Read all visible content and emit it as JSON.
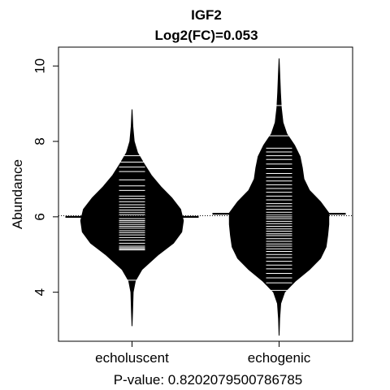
{
  "chart_data": {
    "type": "beanplot",
    "title": "IGF2",
    "subtitle": "Log2(FC)=0.053",
    "ylabel": "Abundance",
    "xlabel": "P-value: 0.8202079500786785",
    "ylim": [
      2.7,
      10.5
    ],
    "yticks": [
      "4",
      "6",
      "8",
      "10"
    ],
    "overall_mean": 6.03,
    "categories": [
      "echoluscent",
      "echogenic"
    ],
    "series": [
      {
        "category": "echoluscent",
        "mean": 6.0,
        "range": [
          3.1,
          8.85
        ],
        "density": [
          [
            3.1,
            0.0
          ],
          [
            3.5,
            0.01
          ],
          [
            4.0,
            0.02
          ],
          [
            4.3,
            0.06
          ],
          [
            4.6,
            0.18
          ],
          [
            5.0,
            0.48
          ],
          [
            5.3,
            0.75
          ],
          [
            5.6,
            0.9
          ],
          [
            5.9,
            0.93
          ],
          [
            6.2,
            0.88
          ],
          [
            6.5,
            0.72
          ],
          [
            6.8,
            0.52
          ],
          [
            7.1,
            0.35
          ],
          [
            7.4,
            0.22
          ],
          [
            7.7,
            0.1
          ],
          [
            8.0,
            0.04
          ],
          [
            8.4,
            0.015
          ],
          [
            8.85,
            0.0
          ]
        ],
        "points": [
          4.32,
          5.12,
          5.15,
          5.18,
          5.22,
          5.3,
          5.38,
          5.45,
          5.52,
          5.58,
          5.63,
          5.7,
          5.75,
          5.8,
          5.86,
          5.9,
          5.95,
          6.02,
          6.06,
          6.12,
          6.18,
          6.25,
          6.32,
          6.4,
          6.48,
          6.55,
          6.7,
          6.82,
          6.98,
          7.2,
          7.32,
          7.45,
          7.62
        ]
      },
      {
        "category": "echogenic",
        "mean": 6.08,
        "range": [
          2.85,
          10.2
        ],
        "density": [
          [
            2.85,
            0.0
          ],
          [
            3.3,
            0.01
          ],
          [
            3.7,
            0.03
          ],
          [
            4.0,
            0.1
          ],
          [
            4.3,
            0.3
          ],
          [
            4.6,
            0.55
          ],
          [
            4.9,
            0.75
          ],
          [
            5.2,
            0.85
          ],
          [
            5.5,
            0.88
          ],
          [
            5.8,
            0.9
          ],
          [
            6.1,
            0.9
          ],
          [
            6.4,
            0.75
          ],
          [
            6.7,
            0.55
          ],
          [
            7.0,
            0.45
          ],
          [
            7.3,
            0.42
          ],
          [
            7.6,
            0.38
          ],
          [
            7.9,
            0.28
          ],
          [
            8.2,
            0.14
          ],
          [
            8.5,
            0.07
          ],
          [
            8.9,
            0.04
          ],
          [
            9.3,
            0.025
          ],
          [
            9.8,
            0.012
          ],
          [
            10.2,
            0.0
          ]
        ],
        "points": [
          4.05,
          4.25,
          4.38,
          4.5,
          4.62,
          4.72,
          4.82,
          4.92,
          5.0,
          5.08,
          5.15,
          5.22,
          5.28,
          5.35,
          5.42,
          5.5,
          5.55,
          5.62,
          5.68,
          5.75,
          5.82,
          5.88,
          5.95,
          6.0,
          6.05,
          6.12,
          6.2,
          6.28,
          6.35,
          6.45,
          6.55,
          6.65,
          6.75,
          6.85,
          6.95,
          7.05,
          7.15,
          7.28,
          7.4,
          7.52,
          7.62,
          7.72,
          7.82,
          8.15,
          8.95
        ]
      }
    ]
  }
}
